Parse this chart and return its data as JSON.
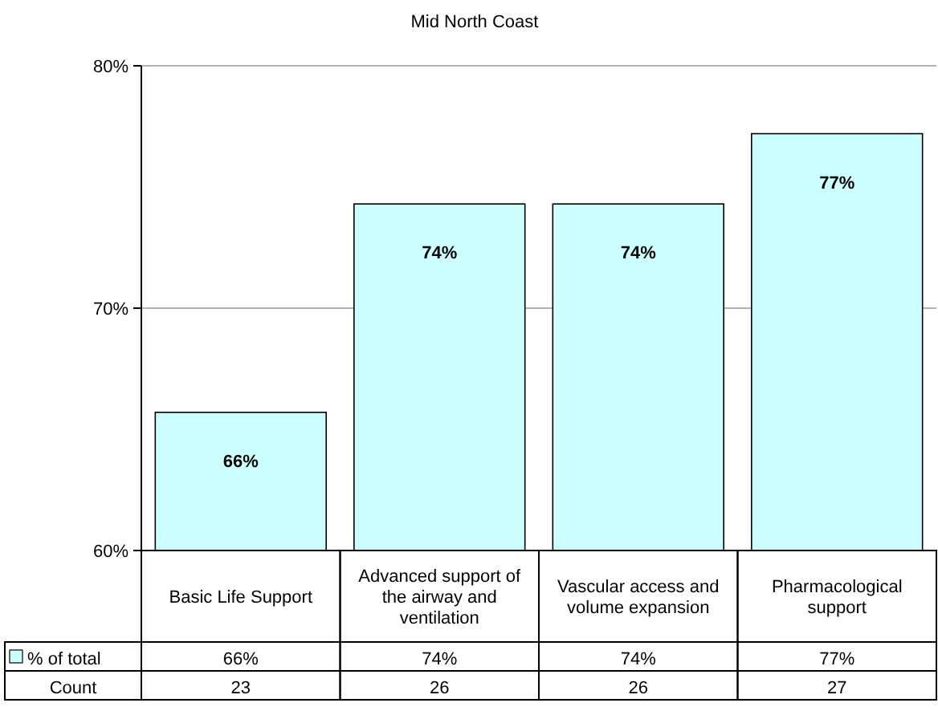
{
  "chart_data": {
    "type": "bar",
    "title": "Mid North Coast",
    "categories": [
      "Basic Life Support",
      "Advanced support of the airway and ventilation",
      "Vascular access and volume expansion",
      "Pharmacological support"
    ],
    "series": [
      {
        "name": "% of total",
        "color": "#ccffff",
        "values": [
          65.7,
          74.3,
          74.3,
          77.2
        ],
        "value_labels": [
          "66%",
          "74%",
          "74%",
          "77%"
        ]
      }
    ],
    "ylim": [
      60,
      80
    ],
    "yticks": [
      {
        "value": 60,
        "label": "60%"
      },
      {
        "value": 70,
        "label": "70%"
      },
      {
        "value": 80,
        "label": "80%"
      }
    ],
    "grid": "y",
    "legend": "bottom left",
    "annotations": [
      "Count",
      "23",
      "26",
      "26",
      "27"
    ]
  }
}
